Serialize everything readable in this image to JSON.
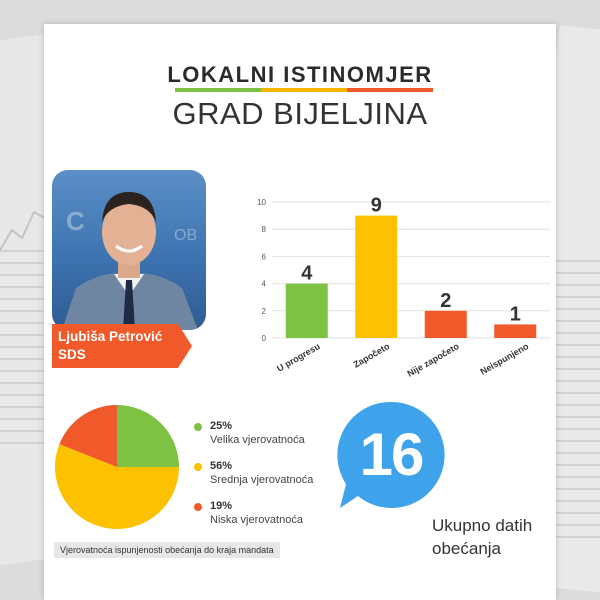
{
  "header": {
    "title": "LOKALNI ISTINOMJER",
    "subtitle": "GRAD BIJELJINA",
    "bar_colors": [
      "#7dc242",
      "#f7b500",
      "#f0592a"
    ]
  },
  "politician": {
    "name": "Ljubiša Petrović",
    "party": "SDS"
  },
  "chart_data": [
    {
      "type": "bar",
      "categories": [
        "U progresu",
        "Započeto",
        "Nije započeto",
        "Neispunjeno"
      ],
      "values": [
        4,
        9,
        2,
        1
      ],
      "colors": [
        "#7dc242",
        "#fcc100",
        "#f0592a",
        "#f0592a"
      ],
      "ylim": [
        0,
        10
      ],
      "yticks": [
        0,
        2,
        4,
        6,
        8,
        10
      ],
      "grid": true,
      "data_labels": true
    },
    {
      "type": "pie",
      "slices": [
        {
          "label": "Velika vjerovatnoća",
          "value": 25,
          "pct_text": "25%",
          "color": "#7dc242"
        },
        {
          "label": "Srednja vjerovatnoća",
          "value": 56,
          "pct_text": "56%",
          "color": "#fcc100"
        },
        {
          "label": "Niska vjerovatnoća",
          "value": 19,
          "pct_text": "19%",
          "color": "#f0592a"
        }
      ],
      "caption": "Vjerovatnoća ispunjenosti obećanja do kraja mandata"
    }
  ],
  "total": {
    "number": "16",
    "label_line1": "Ukupno datih",
    "label_line2": "obećanja",
    "color": "#3ea3ea"
  }
}
